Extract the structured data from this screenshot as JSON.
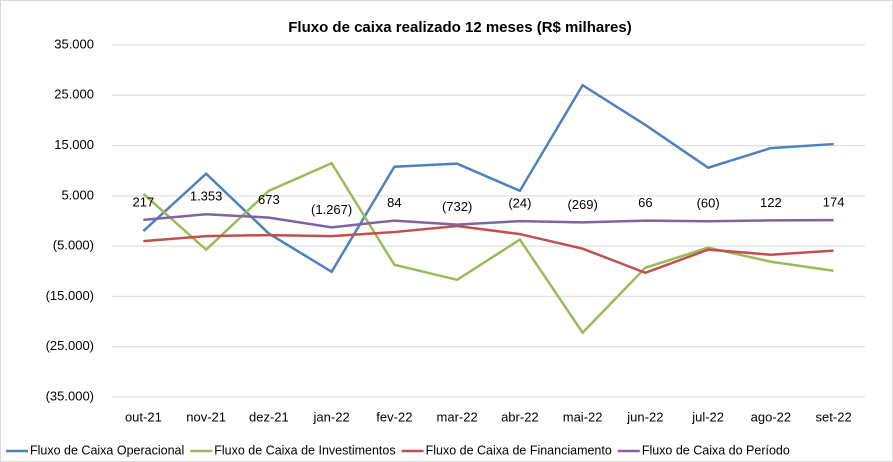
{
  "chart_data": {
    "type": "line",
    "title": "Fluxo de caixa realizado 12 meses (R$ milhares)",
    "categories": [
      "out-21",
      "nov-21",
      "dez-21",
      "jan-22",
      "fev-22",
      "mar-22",
      "abr-22",
      "mai-22",
      "jun-22",
      "jul-22",
      "ago-22",
      "set-22"
    ],
    "series": [
      {
        "name": "Fluxo de Caixa Operacional",
        "color": "#4f81bd",
        "values": [
          -2000,
          9400,
          -2500,
          -10100,
          10800,
          11400,
          6000,
          27000,
          19100,
          10600,
          14500,
          15300
        ]
      },
      {
        "name": "Fluxo de Caixa de Investimentos",
        "color": "#9bbb59",
        "values": [
          5400,
          -5700,
          6000,
          11500,
          -8700,
          -11700,
          -3700,
          -22200,
          -9300,
          -5300,
          -8100,
          -9900
        ]
      },
      {
        "name": "Fluxo de Caixa de Financiamento",
        "color": "#c0504d",
        "values": [
          -4000,
          -3000,
          -2800,
          -3000,
          -2200,
          -1000,
          -2600,
          -5500,
          -10300,
          -5700,
          -6700,
          -5900
        ]
      },
      {
        "name": "Fluxo de Caixa do Período",
        "color": "#8064a2",
        "values": [
          217,
          1353,
          673,
          -1267,
          84,
          -732,
          -24,
          -269,
          66,
          -60,
          122,
          174
        ],
        "value_labels": [
          "217",
          "1.353",
          "673",
          "(1.267)",
          "84",
          "(732)",
          "(24)",
          "(269)",
          "66",
          "(60)",
          "122",
          "174"
        ]
      }
    ],
    "ylim": [
      -35000,
      35000
    ],
    "yticks": [
      {
        "value": 35000,
        "label": "35.000"
      },
      {
        "value": 25000,
        "label": "25.000"
      },
      {
        "value": 15000,
        "label": "15.000"
      },
      {
        "value": 5000,
        "label": "5.000"
      },
      {
        "value": -5000,
        "label": "(5.000)"
      },
      {
        "value": -15000,
        "label": "(15.000)"
      },
      {
        "value": -25000,
        "label": "(25.000)"
      },
      {
        "value": -35000,
        "label": "(35.000)"
      }
    ],
    "grid": true,
    "legend": "bottom"
  }
}
